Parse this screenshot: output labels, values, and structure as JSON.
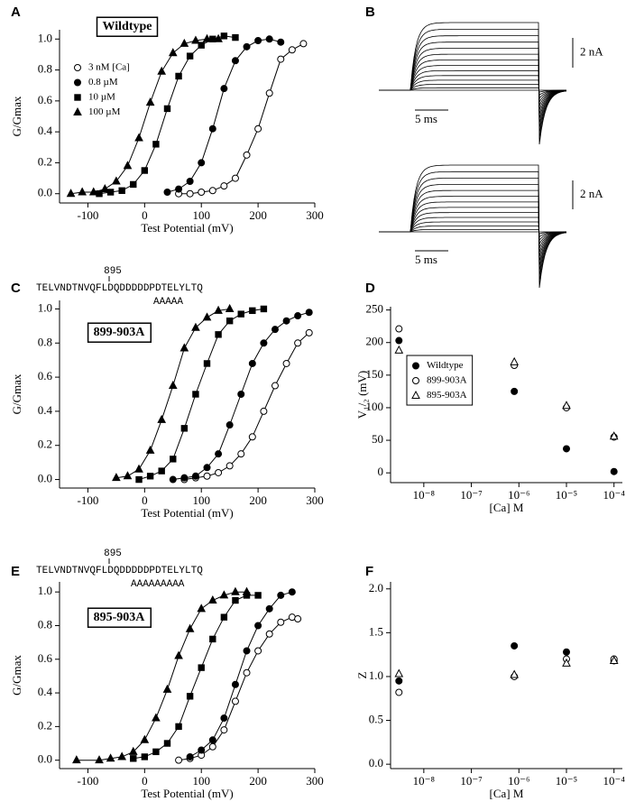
{
  "chart_data": [
    {
      "panel": "A",
      "type": "scatter",
      "title": "Wildtype",
      "color": "#000000",
      "connect": true,
      "legend": "upper left",
      "x_label": "Test Potential (mV)",
      "y_label": "G/Gmax",
      "xlim": [
        -150,
        300
      ],
      "xticks": [
        -100,
        0,
        100,
        200,
        300
      ],
      "ylim": [
        -0.06,
        1.06
      ],
      "yticks": [
        {
          "value": 0,
          "label": "0.0"
        },
        {
          "value": 0.2,
          "label": "0.2"
        },
        {
          "value": 0.4,
          "label": "0.4"
        },
        {
          "value": 0.6,
          "label": "0.6"
        },
        {
          "value": 0.8,
          "label": "0.8"
        },
        {
          "value": 1,
          "label": "1.0"
        }
      ],
      "series": [
        {
          "name": "3 nM [Ca]",
          "marker": "circle-open",
          "x": [
            60,
            80,
            100,
            120,
            140,
            160,
            180,
            200,
            220,
            240,
            260,
            280
          ],
          "values": [
            0,
            0,
            0.01,
            0.02,
            0.05,
            0.1,
            0.25,
            0.42,
            0.65,
            0.87,
            0.93,
            0.97
          ]
        },
        {
          "name": "0.8 µM",
          "marker": "circle",
          "x": [
            40,
            60,
            80,
            100,
            120,
            140,
            160,
            180,
            200,
            220,
            240
          ],
          "values": [
            0.01,
            0.03,
            0.08,
            0.2,
            0.42,
            0.68,
            0.86,
            0.95,
            0.99,
            1,
            0.98
          ]
        },
        {
          "name": "10 µM",
          "marker": "square",
          "x": [
            -80,
            -60,
            -40,
            -20,
            0,
            20,
            40,
            60,
            80,
            100,
            120,
            140,
            160
          ],
          "values": [
            0,
            0.01,
            0.02,
            0.06,
            0.15,
            0.32,
            0.55,
            0.76,
            0.89,
            0.96,
            1,
            1.02,
            1.01
          ]
        },
        {
          "name": "100 µM",
          "marker": "triangle",
          "x": [
            -130,
            -110,
            -90,
            -70,
            -50,
            -30,
            -10,
            10,
            30,
            50,
            70,
            90,
            110,
            130
          ],
          "values": [
            0,
            0.01,
            0.01,
            0.03,
            0.08,
            0.18,
            0.36,
            0.59,
            0.79,
            0.91,
            0.97,
            0.99,
            1,
            1
          ]
        }
      ]
    },
    {
      "panel": "B",
      "type": "traces",
      "color": "#000000",
      "traces": [
        {
          "current_scale": "2 nA",
          "time_scale": "5 ms"
        },
        {
          "current_scale": "2 nA",
          "time_scale": "5 ms"
        }
      ]
    },
    {
      "panel": "C",
      "type": "scatter",
      "title": "899-903A",
      "color": "#000000",
      "connect": true,
      "annotation": {
        "position": "895",
        "sequence": "TELVNDTNVQFLDQDDDDDPDTELYLTQ",
        "mutation": "AAAAA"
      },
      "x_label": "Test Potential (mV)",
      "y_label": "G/Gmax",
      "xlim": [
        -150,
        300
      ],
      "xticks": [
        -100,
        0,
        100,
        200,
        300
      ],
      "ylim": [
        -0.05,
        1.05
      ],
      "yticks": [
        {
          "value": 0,
          "label": "0.0"
        },
        {
          "value": 0.2,
          "label": "0.2"
        },
        {
          "value": 0.4,
          "label": "0.4"
        },
        {
          "value": 0.6,
          "label": "0.6"
        },
        {
          "value": 0.8,
          "label": "0.8"
        },
        {
          "value": 1,
          "label": "1.0"
        }
      ],
      "series": [
        {
          "marker": "circle-open",
          "x": [
            70,
            90,
            110,
            130,
            150,
            170,
            190,
            210,
            230,
            250,
            270,
            290
          ],
          "values": [
            0,
            0.01,
            0.02,
            0.04,
            0.08,
            0.15,
            0.25,
            0.4,
            0.55,
            0.68,
            0.8,
            0.86
          ]
        },
        {
          "marker": "circle",
          "x": [
            50,
            70,
            90,
            110,
            130,
            150,
            170,
            190,
            210,
            230,
            250,
            270,
            290
          ],
          "values": [
            0,
            0.01,
            0.02,
            0.07,
            0.15,
            0.32,
            0.5,
            0.68,
            0.8,
            0.88,
            0.93,
            0.96,
            0.98
          ]
        },
        {
          "marker": "square",
          "x": [
            -10,
            10,
            30,
            50,
            70,
            90,
            110,
            130,
            150,
            170,
            190,
            210
          ],
          "values": [
            0,
            0.02,
            0.05,
            0.12,
            0.3,
            0.5,
            0.68,
            0.85,
            0.93,
            0.97,
            0.99,
            1
          ]
        },
        {
          "marker": "triangle",
          "x": [
            -50,
            -30,
            -10,
            10,
            30,
            50,
            70,
            90,
            110,
            130,
            150
          ],
          "values": [
            0.01,
            0.02,
            0.06,
            0.17,
            0.35,
            0.55,
            0.77,
            0.89,
            0.95,
            0.99,
            1
          ]
        }
      ]
    },
    {
      "panel": "D",
      "type": "scatter",
      "color": "#000000",
      "connect": false,
      "legend": "center left",
      "legend_frame": true,
      "xscale": "log",
      "x_label": "[Ca] M",
      "y_label": "V₁/₂ (mV)",
      "xlim": [
        2e-09,
        0.00015
      ],
      "xticks": [
        {
          "value": 1e-08,
          "label": "10⁻⁸"
        },
        {
          "value": 1e-07,
          "label": "10⁻⁷"
        },
        {
          "value": 1e-06,
          "label": "10⁻⁶"
        },
        {
          "value": 1e-05,
          "label": "10⁻⁵"
        },
        {
          "value": 0.0001,
          "label": "10⁻⁴"
        }
      ],
      "ylim": [
        -15,
        255
      ],
      "yticks": [
        0,
        50,
        100,
        150,
        200,
        250
      ],
      "series": [
        {
          "name": "Wildtype",
          "marker": "circle",
          "x": [
            3e-09,
            8e-07,
            1e-05,
            0.0001
          ],
          "values": [
            203,
            125,
            37,
            2
          ]
        },
        {
          "name": "899-903A",
          "marker": "circle-open",
          "x": [
            3e-09,
            8e-07,
            1e-05,
            0.0001
          ],
          "values": [
            221,
            165,
            100,
            55
          ]
        },
        {
          "name": "895-903A",
          "marker": "triangle-open",
          "x": [
            3e-09,
            8e-07,
            1e-05,
            0.0001
          ],
          "values": [
            188,
            170,
            103,
            56
          ]
        }
      ]
    },
    {
      "panel": "E",
      "type": "scatter",
      "title": "895-903A",
      "color": "#000000",
      "connect": true,
      "annotation": {
        "position": "895",
        "sequence": "TELVNDTNVQFLDQDDDDDPDTELYLTQ",
        "mutation": "AAAAAAAAA"
      },
      "x_label": "Test Potential (mV)",
      "y_label": "G/Gmax",
      "xlim": [
        -150,
        300
      ],
      "xticks": [
        -100,
        0,
        100,
        200,
        300
      ],
      "ylim": [
        -0.05,
        1.06
      ],
      "yticks": [
        {
          "value": 0,
          "label": "0.0"
        },
        {
          "value": 0.2,
          "label": "0.2"
        },
        {
          "value": 0.4,
          "label": "0.4"
        },
        {
          "value": 0.6,
          "label": "0.6"
        },
        {
          "value": 0.8,
          "label": "0.8"
        },
        {
          "value": 1,
          "label": "1.0"
        }
      ],
      "series": [
        {
          "marker": "circle-open",
          "x": [
            60,
            80,
            100,
            120,
            140,
            160,
            180,
            200,
            220,
            240,
            260,
            270
          ],
          "values": [
            0,
            0.01,
            0.03,
            0.08,
            0.18,
            0.35,
            0.52,
            0.65,
            0.75,
            0.82,
            0.85,
            0.84
          ]
        },
        {
          "marker": "circle",
          "x": [
            80,
            100,
            120,
            140,
            160,
            180,
            200,
            220,
            240,
            260
          ],
          "values": [
            0.02,
            0.06,
            0.12,
            0.25,
            0.45,
            0.65,
            0.8,
            0.9,
            0.98,
            1
          ]
        },
        {
          "marker": "square",
          "x": [
            -20,
            0,
            20,
            40,
            60,
            80,
            100,
            120,
            140,
            160,
            180,
            200
          ],
          "values": [
            0.01,
            0.02,
            0.05,
            0.1,
            0.2,
            0.38,
            0.55,
            0.72,
            0.85,
            0.95,
            0.98,
            0.98
          ]
        },
        {
          "marker": "triangle",
          "x": [
            -120,
            -80,
            -60,
            -40,
            -20,
            0,
            20,
            40,
            60,
            80,
            100,
            120,
            140,
            160,
            180
          ],
          "values": [
            0,
            0,
            0.01,
            0.02,
            0.05,
            0.12,
            0.25,
            0.42,
            0.62,
            0.78,
            0.9,
            0.95,
            0.98,
            1,
            1
          ]
        }
      ]
    },
    {
      "panel": "F",
      "type": "scatter",
      "color": "#000000",
      "connect": false,
      "xscale": "log",
      "x_label": "[Ca] M",
      "y_label": "Z",
      "xlim": [
        2e-09,
        0.00015
      ],
      "xticks": [
        {
          "value": 1e-08,
          "label": "10⁻⁸"
        },
        {
          "value": 1e-07,
          "label": "10⁻⁷"
        },
        {
          "value": 1e-06,
          "label": "10⁻⁶"
        },
        {
          "value": 1e-05,
          "label": "10⁻⁵"
        },
        {
          "value": 0.0001,
          "label": "10⁻⁴"
        }
      ],
      "ylim": [
        -0.05,
        2.08
      ],
      "yticks": [
        {
          "value": 0,
          "label": "0.0"
        },
        {
          "value": 0.5,
          "label": "0.5"
        },
        {
          "value": 1,
          "label": "1.0"
        },
        {
          "value": 1.5,
          "label": "1.5"
        },
        {
          "value": 2,
          "label": "2.0"
        }
      ],
      "series": [
        {
          "marker": "circle",
          "x": [
            3e-09,
            8e-07,
            1e-05,
            0.0001
          ],
          "values": [
            0.95,
            1.35,
            1.28,
            1.18
          ]
        },
        {
          "marker": "circle-open",
          "x": [
            3e-09,
            8e-07,
            1e-05,
            0.0001
          ],
          "values": [
            0.82,
            1,
            1.2,
            1.2
          ]
        },
        {
          "marker": "triangle-open",
          "x": [
            3e-09,
            8e-07,
            1e-05,
            0.0001
          ],
          "values": [
            1.03,
            1.02,
            1.15,
            1.18
          ]
        }
      ]
    }
  ]
}
